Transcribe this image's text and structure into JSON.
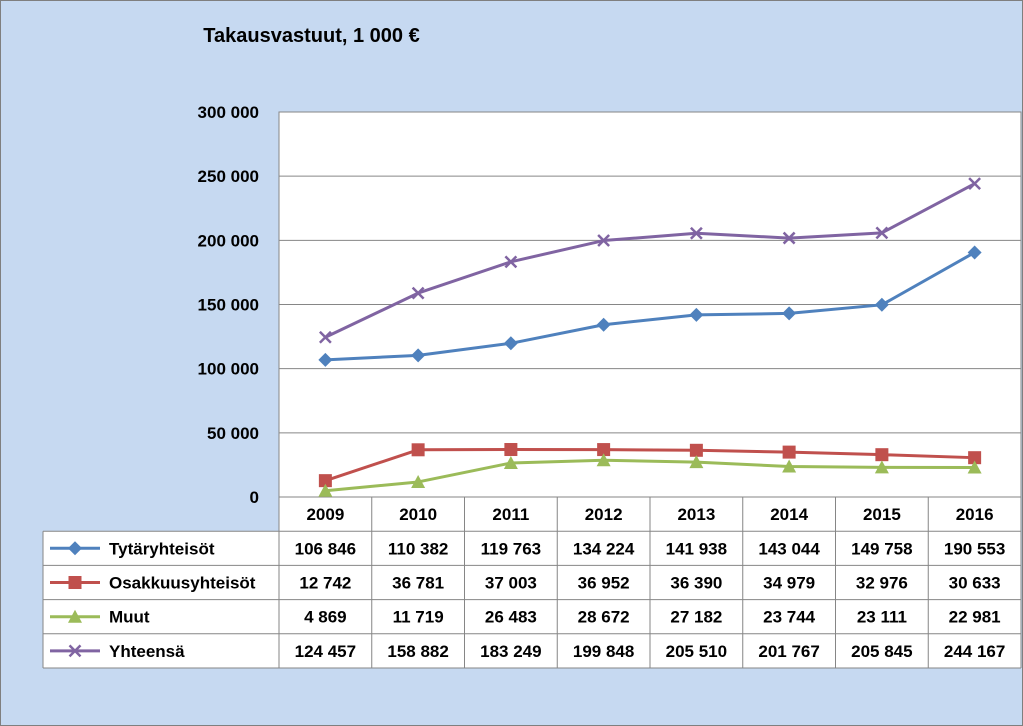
{
  "chart_data": {
    "type": "line",
    "title": "Takausvastuut, 1 000 €",
    "categories": [
      "2009",
      "2010",
      "2011",
      "2012",
      "2013",
      "2014",
      "2015",
      "2016"
    ],
    "ylim": [
      0,
      300000
    ],
    "yticks": [
      0,
      50000,
      100000,
      150000,
      200000,
      250000,
      300000
    ],
    "ytick_labels": [
      "0",
      "50 000",
      "100 000",
      "150 000",
      "200 000",
      "250 000",
      "300 000"
    ],
    "grid": true,
    "legend": "data-table",
    "series": [
      {
        "name": "Tytäryhteisöt",
        "color": "#4f81bd",
        "marker": "diamond",
        "values": [
          106846,
          110382,
          119763,
          134224,
          141938,
          143044,
          149758,
          190553
        ],
        "labels": [
          "106 846",
          "110 382",
          "119 763",
          "134 224",
          "141 938",
          "143 044",
          "149 758",
          "190 553"
        ]
      },
      {
        "name": "Osakkuusyhteisöt",
        "color": "#c0504d",
        "marker": "square",
        "values": [
          12742,
          36781,
          37003,
          36952,
          36390,
          34979,
          32976,
          30633
        ],
        "labels": [
          "12 742",
          "36 781",
          "37 003",
          "36 952",
          "36 390",
          "34 979",
          "32 976",
          "30 633"
        ]
      },
      {
        "name": "Muut",
        "color": "#9bbb59",
        "marker": "triangle",
        "values": [
          4869,
          11719,
          26483,
          28672,
          27182,
          23744,
          23111,
          22981
        ],
        "labels": [
          "4 869",
          "11 719",
          "26 483",
          "28 672",
          "27 182",
          "23 744",
          "23 111",
          "22 981"
        ]
      },
      {
        "name": "Yhteensä",
        "color": "#8064a2",
        "marker": "x",
        "values": [
          124457,
          158882,
          183249,
          199848,
          205510,
          201767,
          205845,
          244167
        ],
        "labels": [
          "124 457",
          "158 882",
          "183 249",
          "199 848",
          "205 510",
          "201 767",
          "205 845",
          "244 167"
        ]
      }
    ]
  }
}
